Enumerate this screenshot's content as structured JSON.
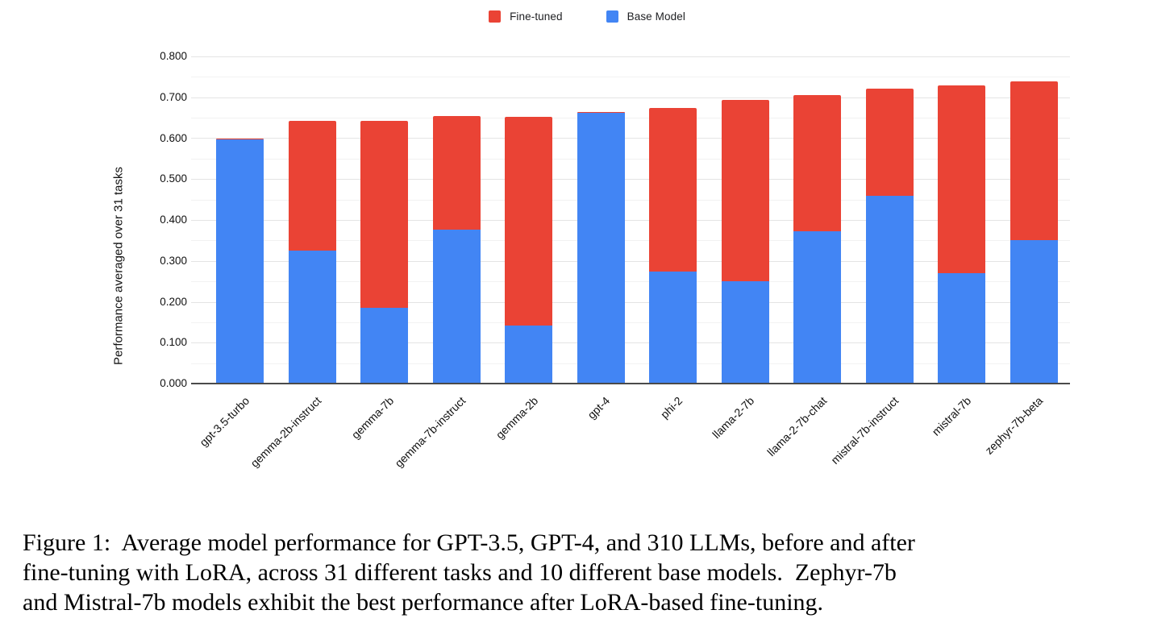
{
  "legend": {
    "items": [
      {
        "label": "Fine-tuned",
        "color": "#EA4335"
      },
      {
        "label": "Base Model",
        "color": "#4285F4"
      }
    ]
  },
  "colors": {
    "fine_tuned": "#EA4335",
    "base_model": "#4285F4",
    "grid_major": "#e4e4e4",
    "grid_minor": "#f2f2f2",
    "axis_line": "#4a4a4a",
    "text": "#111111"
  },
  "chart_data": {
    "type": "bar",
    "stacked": true,
    "title": "",
    "xlabel": "",
    "ylabel": "Performance averaged over 31 tasks",
    "ylim": [
      0,
      0.8
    ],
    "ytick_interval": 0.1,
    "minor_gridline_interval": 0.05,
    "ytick_labels": [
      "0.000",
      "0.100",
      "0.200",
      "0.300",
      "0.400",
      "0.500",
      "0.600",
      "0.700",
      "0.800"
    ],
    "grid": true,
    "legend_position": "top-center",
    "categories": [
      "gpt-3.5-turbo",
      "gemma-2b-instruct",
      "gemma-7b",
      "gemma-7b-instruct",
      "gemma-2b",
      "gpt-4",
      "phi-2",
      "llama-2-7b",
      "llama-2-7b-chat",
      "mistral-7b-instruct",
      "mistral-7b",
      "zephyr-7b-beta"
    ],
    "series": [
      {
        "name": "Base Model",
        "color": "#4285F4",
        "values": [
          0.598,
          0.325,
          0.186,
          0.376,
          0.142,
          0.662,
          0.273,
          0.251,
          0.372,
          0.46,
          0.269,
          0.35
        ]
      },
      {
        "name": "Fine-tuned",
        "color": "#EA4335",
        "values": [
          0.002,
          0.317,
          0.456,
          0.278,
          0.511,
          0.002,
          0.401,
          0.443,
          0.334,
          0.261,
          0.46,
          0.389
        ]
      }
    ],
    "stack_totals": [
      0.6,
      0.642,
      0.642,
      0.654,
      0.653,
      0.664,
      0.674,
      0.694,
      0.706,
      0.721,
      0.729,
      0.739
    ]
  },
  "caption": {
    "lines": [
      "Figure 1:  Average model performance for GPT-3.5, GPT-4, and 310 LLMs, before and after",
      "fine-tuning with LoRA, across 31 different tasks and 10 different base models.  Zephyr-7b",
      "and Mistral-7b models exhibit the best performance after LoRA-based fine-tuning."
    ]
  }
}
